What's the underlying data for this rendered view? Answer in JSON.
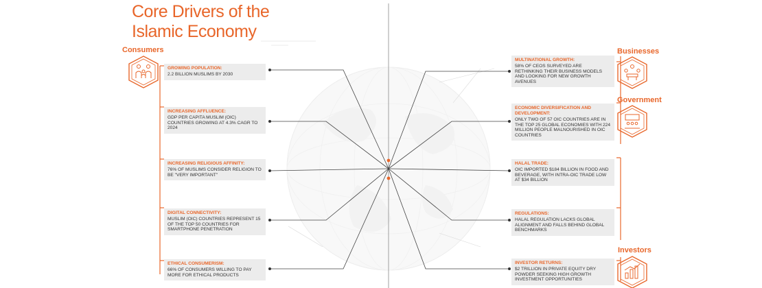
{
  "title": {
    "line1": "Core Drivers of the",
    "line2": "Islamic Economy"
  },
  "colors": {
    "accent": "#e8662a",
    "card_bg": "#ececec",
    "text": "#333333",
    "line": "#444444"
  },
  "categories": {
    "consumers": "Consumers",
    "businesses": "Businesses",
    "government": "Government",
    "investors": "Investors"
  },
  "icons": {
    "consumers": "family-group-icon",
    "businesses": "meeting-table-icon",
    "government": "assembly-hall-icon",
    "investors": "growth-chart-icon"
  },
  "left_cards": [
    {
      "title": "Growing Population:",
      "text": "2.2 Billion Muslims by 2030"
    },
    {
      "title": "Increasing Affluence:",
      "text": "GDP per capita Muslim (OIC) countries growing at 4.3% CAGR to 2024"
    },
    {
      "title": "Increasing Religious Affinity:",
      "text": "76% of Muslims consider religion to be \"very important\""
    },
    {
      "title": "Digital Connectivity:",
      "text": "Muslim (OIC) countries represent 15 of the top 50 countries for smartphone penetration"
    },
    {
      "title": "Ethical Consumerism:",
      "text": "66% of consumers willing to pay more for ethical products"
    }
  ],
  "right_cards": [
    {
      "title": "Multinational Growth:",
      "text": "58% of CEOs surveyed are rethinking their business models and looking for new growth avenues"
    },
    {
      "title": "Economic Diversification and Development:",
      "text": "Only two of 57 OIC countries are in the top 25 global economies with 224 million people malnourished in OIC countries"
    },
    {
      "title": "Halal Trade:",
      "text": "OIC imported $184 billion in food and beverage, with intra-OIC trade low at $34 billion"
    },
    {
      "title": "Regulations:",
      "text": "Halal regulation lacks global alignment and falls behind global benchmarks"
    },
    {
      "title": "Investor Returns:",
      "text": "$2 trillion in private equity dry powder seeking high growth investment opportunities"
    }
  ]
}
